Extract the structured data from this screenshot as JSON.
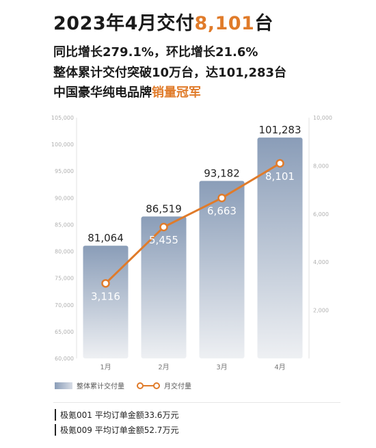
{
  "headline": {
    "prefix": "2023年4月交付",
    "accent": "8,101",
    "suffix": "台"
  },
  "lines": {
    "line1": "同比增长279.1%，环比增长21.6%",
    "line2": "整体累计交付突破10万台，达101,283台",
    "line3_prefix": "中国豪华纯电品牌",
    "line3_accent": "销量冠军"
  },
  "chart_data": {
    "type": "bar",
    "categories": [
      "1月",
      "2月",
      "3月",
      "4月"
    ],
    "series": [
      {
        "name": "整体累计交付量",
        "type": "bar",
        "axis": "left",
        "values": [
          81064,
          86519,
          93182,
          101283
        ],
        "labels": [
          "81,064",
          "86,519",
          "93,182",
          "101,283"
        ]
      },
      {
        "name": "月交付量",
        "type": "line",
        "axis": "right",
        "values": [
          3116,
          5455,
          6663,
          8101
        ],
        "labels": [
          "3,116",
          "5,455",
          "6,663",
          "8,101"
        ]
      }
    ],
    "y_left": {
      "lim": [
        60000,
        105000
      ],
      "ticks": [
        "60,000",
        "65,000",
        "70,000",
        "75,000",
        "80,000",
        "85,000",
        "90,000",
        "95,000",
        "100,000",
        "105,000"
      ]
    },
    "y_right": {
      "lim": [
        0,
        10000
      ],
      "ticks": [
        "2,000",
        "4,000",
        "6,000",
        "8,000",
        "10,000"
      ]
    },
    "grid": false,
    "legend": "bottom-left",
    "colors": {
      "bar_top": "#8a9db8",
      "bar_bottom": "#eef0f3",
      "line": "#e07b2a",
      "accent": "#e07b2a"
    }
  },
  "legend": {
    "bar": "整体累计交付量",
    "line": "月交付量"
  },
  "footer": {
    "item1": "极氪001 平均订单金额33.6万元",
    "item2": "极氪009 平均订单金额52.7万元"
  }
}
